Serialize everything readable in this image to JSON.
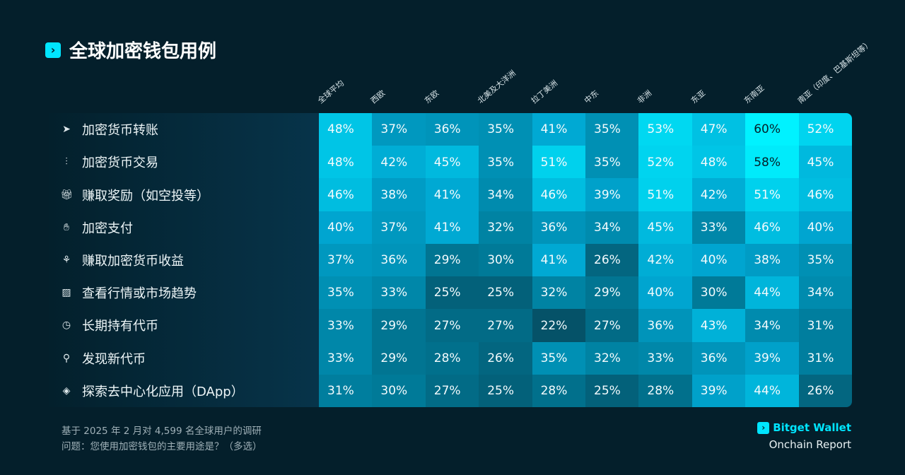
{
  "title": "全球加密钱包用例",
  "chart_data": {
    "type": "heatmap",
    "title": "全球加密钱包用例",
    "columns": [
      "全球平均",
      "西欧",
      "东欧",
      "北美及大洋洲",
      "拉丁美洲",
      "中东",
      "非洲",
      "东亚",
      "东南亚",
      "南亚（印度、巴基斯坦等）"
    ],
    "rows": [
      {
        "label": "加密货币转账",
        "icon": "send-icon",
        "values": [
          48,
          37,
          36,
          35,
          41,
          35,
          53,
          47,
          60,
          52
        ]
      },
      {
        "label": "加密货币交易",
        "icon": "candlestick-icon",
        "values": [
          48,
          42,
          45,
          35,
          51,
          35,
          52,
          48,
          58,
          45
        ]
      },
      {
        "label": "赚取奖励（如空投等）",
        "icon": "gift-icon",
        "values": [
          46,
          38,
          41,
          34,
          46,
          39,
          51,
          42,
          51,
          46
        ]
      },
      {
        "label": "加密支付",
        "icon": "hand-coin-icon",
        "values": [
          40,
          37,
          41,
          32,
          36,
          34,
          45,
          33,
          46,
          40
        ]
      },
      {
        "label": "赚取加密货币收益",
        "icon": "coin-growth-icon",
        "values": [
          37,
          36,
          29,
          30,
          41,
          26,
          42,
          40,
          38,
          35
        ]
      },
      {
        "label": "查看行情或市场趋势",
        "icon": "market-chart-icon",
        "values": [
          35,
          33,
          25,
          25,
          32,
          29,
          40,
          30,
          44,
          34
        ]
      },
      {
        "label": "长期持有代币",
        "icon": "clock-icon",
        "values": [
          33,
          29,
          27,
          27,
          22,
          27,
          36,
          43,
          34,
          31
        ]
      },
      {
        "label": "发现新代币",
        "icon": "search-icon",
        "values": [
          33,
          29,
          28,
          26,
          35,
          32,
          33,
          36,
          39,
          31
        ]
      },
      {
        "label": "探索去中心化应用（DApp）",
        "icon": "compass-icon",
        "values": [
          31,
          30,
          27,
          25,
          28,
          25,
          28,
          39,
          44,
          26
        ]
      }
    ],
    "unit": "%"
  },
  "footer": {
    "line1": "基于 2025 年 2 月对 4,599 名全球用户的调研",
    "line2": "问题：您使用加密钱包的主要用途是？（多选）"
  },
  "brand": {
    "name": "Bitget Wallet",
    "subtitle": "Onchain Report"
  },
  "colors": {
    "background": "#041f2b",
    "accent": "#00e5ff"
  }
}
